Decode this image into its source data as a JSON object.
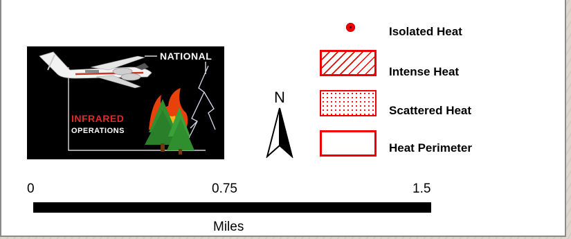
{
  "logo": {
    "word_national": "NATIONAL",
    "word_infrared": "INFRARED",
    "word_operations": "OPERATIONS"
  },
  "north_arrow": {
    "letter": "N"
  },
  "legend": {
    "items": [
      {
        "label": "Isolated Heat",
        "symbol": "red-dot"
      },
      {
        "label": "Intense Heat",
        "symbol": "hatched-red-box"
      },
      {
        "label": "Scattered Heat",
        "symbol": "dotted-red-box"
      },
      {
        "label": "Heat Perimeter",
        "symbol": "red-outline-box"
      }
    ],
    "color": "#ee0000"
  },
  "scale_bar": {
    "ticks": [
      "0",
      "0.75",
      "1.5"
    ],
    "units": "Miles"
  }
}
